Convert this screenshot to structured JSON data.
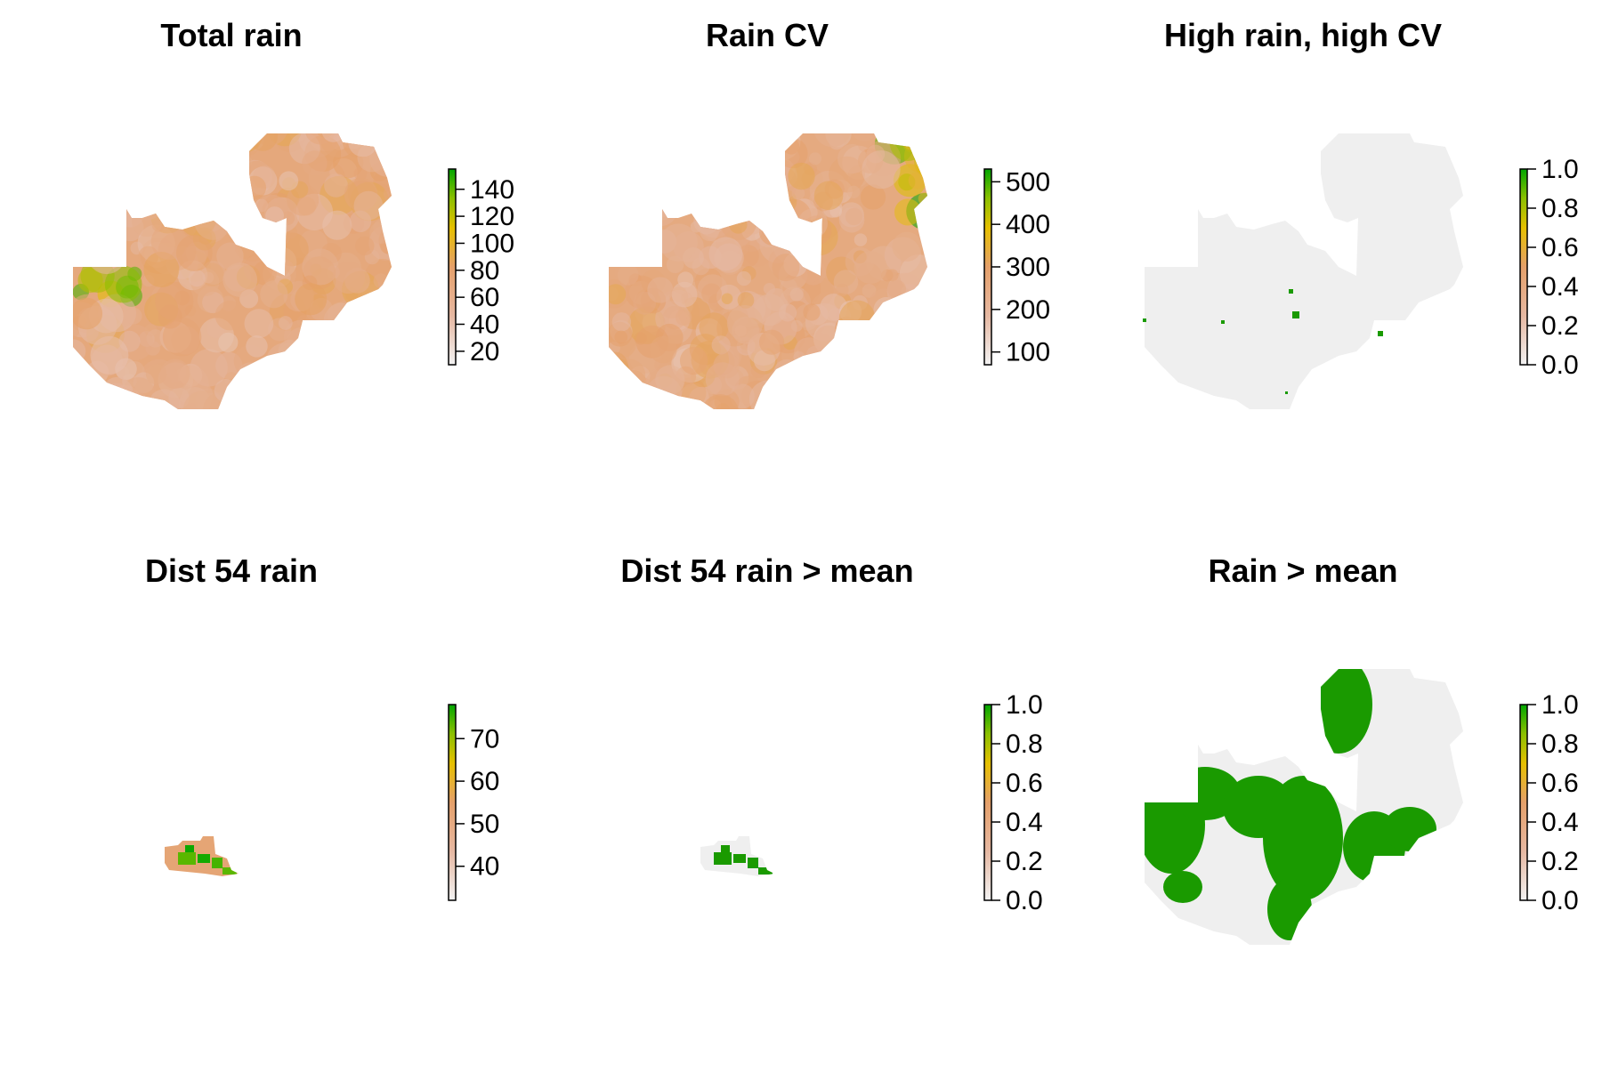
{
  "figure": {
    "panels": [
      {
        "title": "Total rain",
        "type": "continuous",
        "fill_style": "total",
        "legend": {
          "min": 10,
          "max": 155,
          "ticks": [
            20,
            40,
            60,
            80,
            100,
            120,
            140
          ]
        }
      },
      {
        "title": "Rain CV",
        "type": "continuous",
        "fill_style": "cv",
        "legend": {
          "min": 70,
          "max": 530,
          "ticks": [
            100,
            200,
            300,
            400,
            500
          ]
        }
      },
      {
        "title": "High rain, high CV",
        "type": "binary",
        "fill_style": "binary-sparse",
        "legend": {
          "min": 0,
          "max": 1,
          "ticks": [
            "0.0",
            "0.2",
            "0.4",
            "0.6",
            "0.8",
            "1.0"
          ]
        }
      },
      {
        "title": "Dist 54 rain",
        "type": "continuous",
        "fill_style": "district",
        "legend": {
          "min": 32,
          "max": 78,
          "ticks": [
            40,
            50,
            60,
            70
          ]
        }
      },
      {
        "title": "Dist 54 rain > mean",
        "type": "binary",
        "fill_style": "district-binary",
        "legend": {
          "min": 0,
          "max": 1,
          "ticks": [
            "0.0",
            "0.2",
            "0.4",
            "0.6",
            "0.8",
            "1.0"
          ]
        }
      },
      {
        "title": "Rain > mean",
        "type": "binary",
        "fill_style": "binary-large",
        "legend": {
          "min": 0,
          "max": 1,
          "ticks": [
            "0.0",
            "0.2",
            "0.4",
            "0.6",
            "0.8",
            "1.0"
          ]
        }
      }
    ],
    "colors": {
      "ramp": [
        "#f2f2f2",
        "#e6b8a2",
        "#e5a06a",
        "#e6c000",
        "#8cc000",
        "#00a600"
      ],
      "binary_zero": "#efefef",
      "binary_one": "#1a9a00"
    }
  }
}
